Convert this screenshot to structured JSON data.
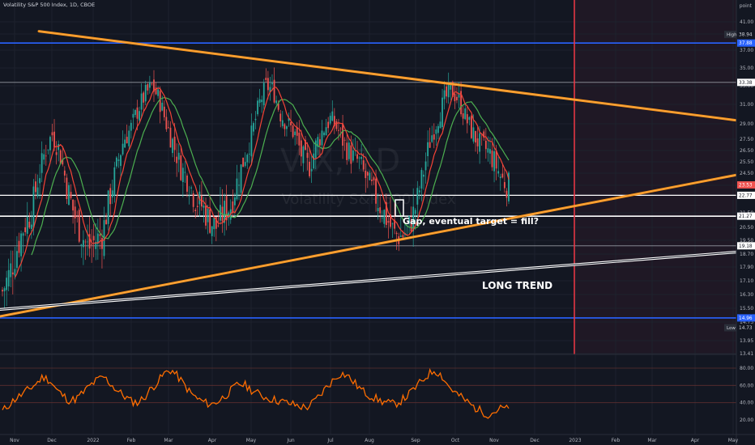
{
  "header": {
    "title": "Volatility S&P 500 Index, 1D, CBOE"
  },
  "watermark": {
    "symbol": "VIX, 1D",
    "name": "Volatility S&P 500 Index"
  },
  "colors": {
    "background": "#131722",
    "grid": "#1e222d",
    "axis_text": "#b2b5be",
    "up": "#26a69a",
    "down": "#ef5350",
    "trendline": "#f7931a",
    "support_line": "#ffffff",
    "blue_line": "#2962ff",
    "red_vline": "#f23645",
    "ma_fast": "#f44336",
    "ma_slow": "#4caf50",
    "oscillator": "#ff6d00"
  },
  "chart_data": {
    "type": "candlestick",
    "price_axis": {
      "unit_label": "point",
      "ticks": [
        "41.00",
        "39.00",
        "37.00",
        "35.00",
        "33.00",
        "31.00",
        "29.00",
        "27.50",
        "26.50",
        "25.50",
        "24.50",
        "23.50",
        "21.50",
        "20.50",
        "19.50",
        "18.70",
        "17.90",
        "17.10",
        "16.30",
        "15.50",
        "14.73",
        "13.95",
        "13.41"
      ]
    },
    "time_axis": {
      "labels": [
        "Nov",
        "Dec",
        "2022",
        "Feb",
        "Mar",
        "Apr",
        "May",
        "Jun",
        "Jul",
        "Aug",
        "Sep",
        "Oct",
        "Nov",
        "Dec",
        "2023",
        "Feb",
        "Mar",
        "Apr",
        "May"
      ]
    },
    "price_tags": [
      {
        "label": "High",
        "value": "38.94"
      },
      {
        "value": "37.88"
      },
      {
        "value": "33.38"
      },
      {
        "value": "23.53"
      },
      {
        "value": "22.77"
      },
      {
        "value": "21.27"
      },
      {
        "value": "19.18"
      },
      {
        "value": "14.96"
      },
      {
        "label": "Low",
        "value": "14.73"
      }
    ],
    "horizontal_levels": [
      37.88,
      33.38,
      22.77,
      21.27,
      19.18,
      14.96
    ],
    "trendlines": [
      {
        "name": "upper",
        "from": [
          "2021-10",
          40.8
        ],
        "to": [
          "2023-05",
          29.4
        ]
      },
      {
        "name": "lower",
        "from": [
          "2021-11",
          15.2
        ],
        "to": [
          "2023-05",
          24.3
        ]
      },
      {
        "name": "long-trend",
        "from": [
          "2021-11",
          15.5
        ],
        "to": [
          "2023-05",
          18.8
        ]
      }
    ],
    "vertical_marker": "2023",
    "annotations": [
      {
        "text": "Gap, eventual target = fill?"
      },
      {
        "text": "LONG TREND"
      }
    ],
    "close_path": [
      16.5,
      17.5,
      19.0,
      20.5,
      21.5,
      24.0,
      26.5,
      28.0,
      26.5,
      23.5,
      21.5,
      20.0,
      19.0,
      19.5,
      20.0,
      22.5,
      25.0,
      27.5,
      28.5,
      30.5,
      32.0,
      33.0,
      31.5,
      29.0,
      27.0,
      25.0,
      24.0,
      22.5,
      22.0,
      21.0,
      20.5,
      21.5,
      22.0,
      24.0,
      26.0,
      28.0,
      31.0,
      33.0,
      32.5,
      30.0,
      29.0,
      28.0,
      26.0,
      25.0,
      27.0,
      28.5,
      29.5,
      28.5,
      27.0,
      26.0,
      25.5,
      24.0,
      23.0,
      22.0,
      21.0,
      20.0,
      19.8,
      20.5,
      22.0,
      24.5,
      27.5,
      29.5,
      31.5,
      32.5,
      31.5,
      29.5,
      28.0,
      27.0,
      26.5,
      25.5,
      24.0,
      23.5
    ],
    "oscillator": {
      "levels": [
        80,
        60,
        40
      ],
      "ticks": [
        "80.00",
        "60.00",
        "40.00",
        "20.00"
      ],
      "values": [
        30,
        38,
        45,
        50,
        56,
        62,
        70,
        66,
        55,
        48,
        42,
        45,
        52,
        60,
        66,
        70,
        62,
        54,
        48,
        42,
        40,
        46,
        56,
        64,
        74,
        78,
        70,
        60,
        50,
        44,
        40,
        38,
        42,
        48,
        55,
        62,
        60,
        54,
        50,
        46,
        44,
        42,
        40,
        38,
        36,
        34,
        40,
        48,
        58,
        66,
        74,
        72,
        64,
        56,
        50,
        46,
        42,
        40,
        38,
        42,
        48,
        56,
        64,
        72,
        78,
        72,
        60,
        52,
        46,
        40,
        34,
        30,
        26,
        30,
        34,
        32
      ]
    }
  }
}
